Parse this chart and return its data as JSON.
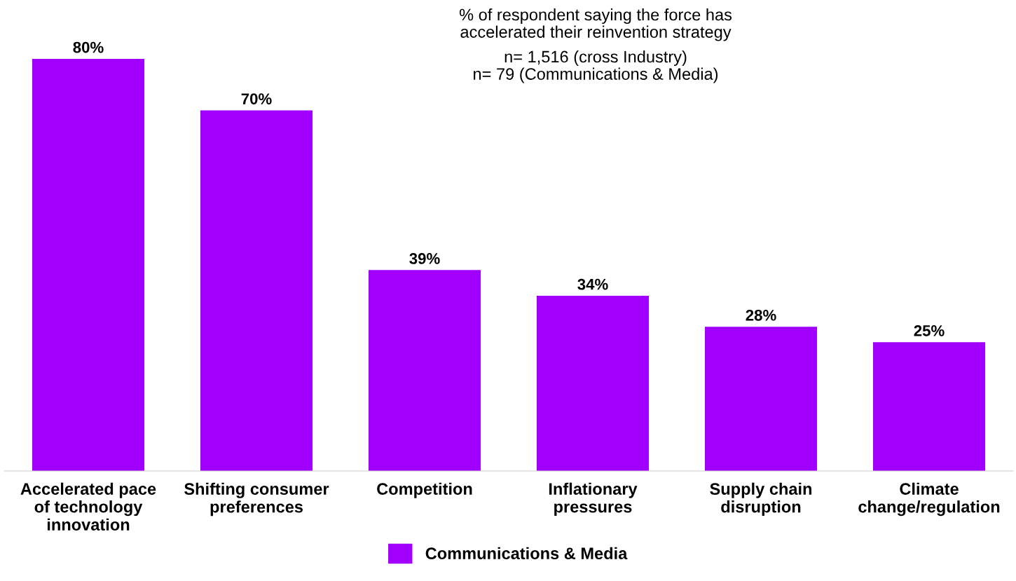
{
  "chart_data": {
    "type": "bar",
    "title": "% of respondent saying the force has\naccelerated their reinvention strategy",
    "subtitle": "n= 1,516 (cross Industry)\nn= 79 (Communications & Media)",
    "categories": [
      "Accelerated pace\nof technology\ninnovation",
      "Shifting consumer\npreferences",
      "Competition",
      "Inflationary\npressures",
      "Supply chain\ndisruption",
      "Climate\nchange/regulation"
    ],
    "series": [
      {
        "name": "Communications & Media",
        "color": "#a100ff",
        "values": [
          80,
          70,
          39,
          34,
          28,
          25
        ],
        "value_labels": [
          "80%",
          "70%",
          "39%",
          "34%",
          "28%",
          "25%"
        ]
      }
    ],
    "legend": "bottom",
    "grid": false
  }
}
